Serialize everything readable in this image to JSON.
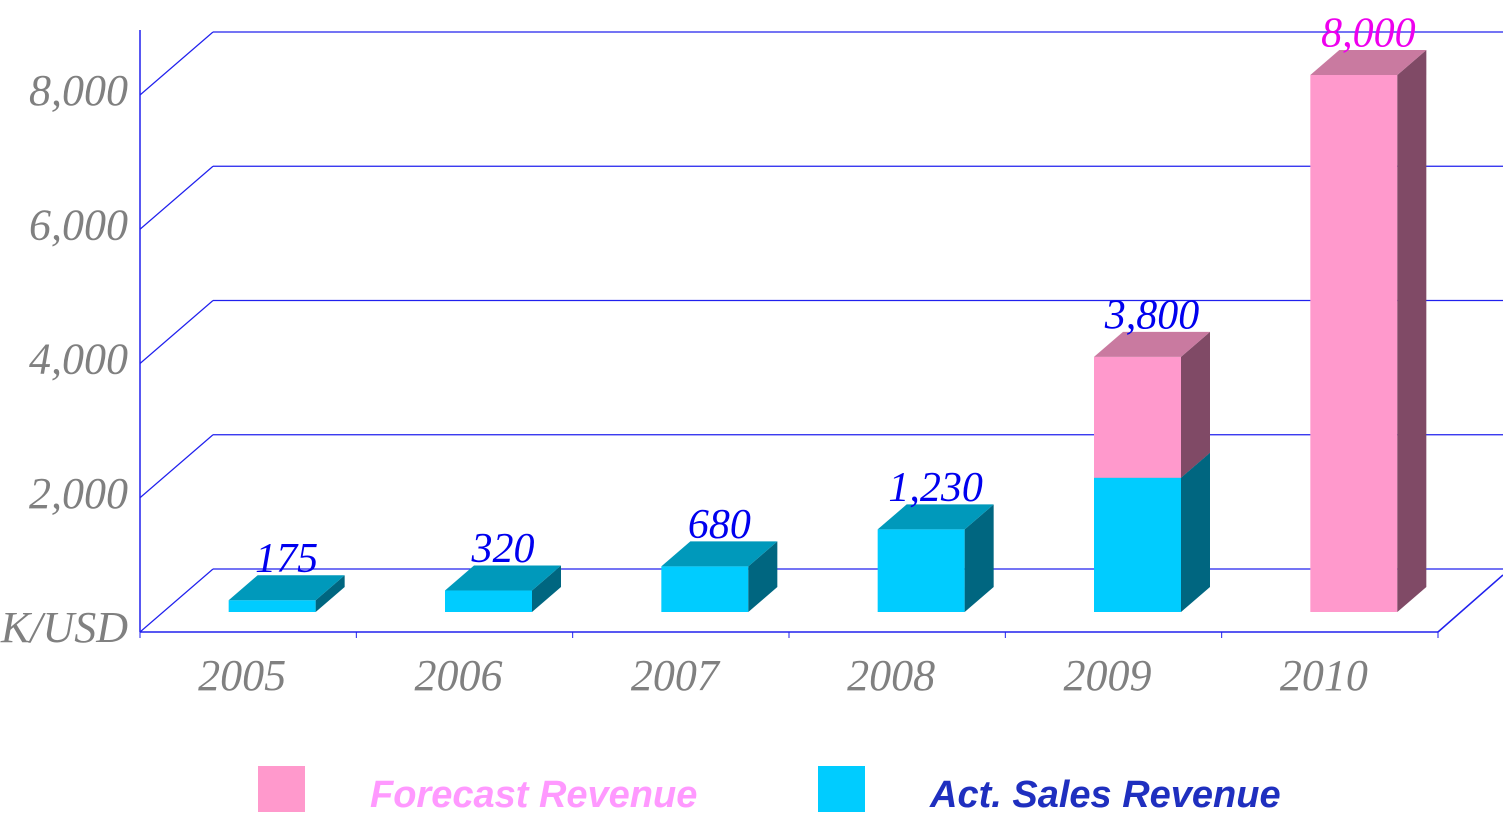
{
  "chart_data": {
    "type": "bar3d_stacked",
    "categories": [
      "2005",
      "2006",
      "2007",
      "2008",
      "2009",
      "2010"
    ],
    "series": [
      {
        "name": "Forecast Revenue",
        "color": "#ff99cc",
        "side_color": "#804a66",
        "top_color": "#c97aa0",
        "legend_text_color": "#ff99ff",
        "values": [
          null,
          null,
          null,
          null,
          1800,
          8000
        ]
      },
      {
        "name": "Act. Sales Revenue",
        "color": "#00ccff",
        "side_color": "#006680",
        "top_color": "#0099bb",
        "legend_text_color": "#1f2fbf",
        "values": [
          175,
          320,
          680,
          1230,
          2000,
          null
        ]
      }
    ],
    "totals": [
      175,
      320,
      680,
      1230,
      3800,
      8000
    ],
    "total_labels": [
      "175",
      "320",
      "680",
      "1,230",
      "3,800",
      "8,000"
    ],
    "total_label_colors": [
      "#0000ee",
      "#0000ee",
      "#0000ee",
      "#0000ee",
      "#0000ee",
      "#ee00ee"
    ],
    "ylim": [
      0,
      8000
    ],
    "yticks": [
      {
        "value": 0,
        "label": "K/USD"
      },
      {
        "value": 2000,
        "label": "2,000"
      },
      {
        "value": 4000,
        "label": "4,000"
      },
      {
        "value": 6000,
        "label": "6,000"
      },
      {
        "value": 8000,
        "label": "8,000"
      }
    ],
    "grid": true
  }
}
